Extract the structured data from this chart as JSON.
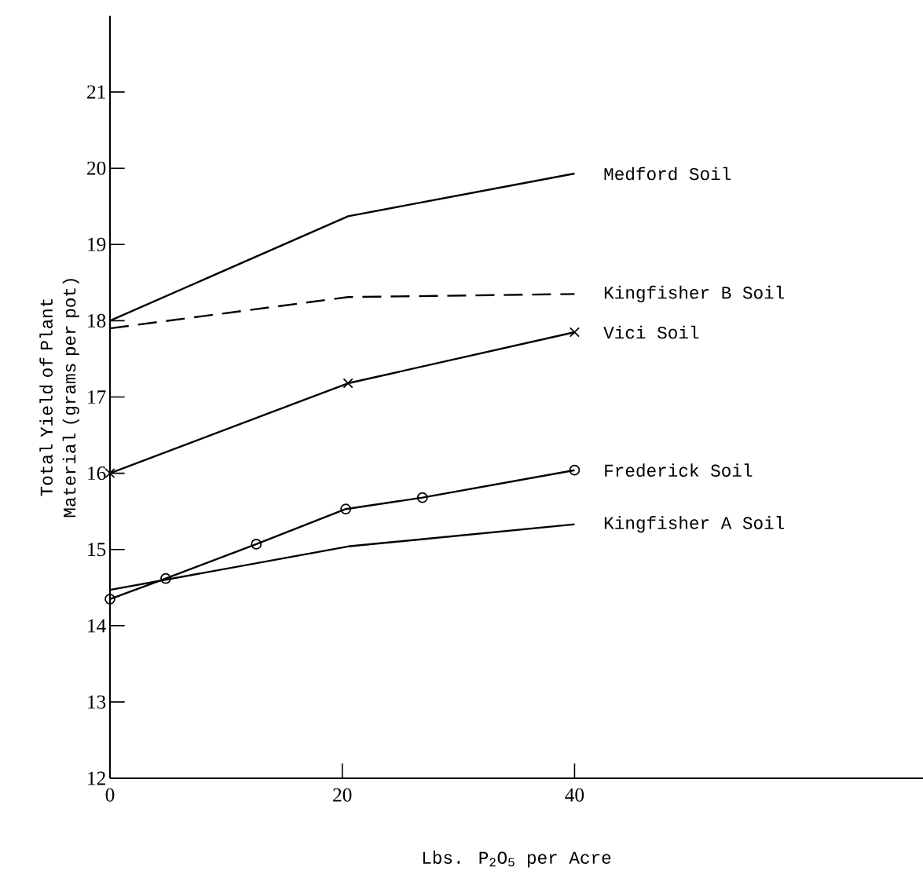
{
  "chart_data": {
    "type": "line",
    "xlabel": "Lbs. P$_{2}$O$_{5}$ per Acre",
    "ylabel": "Total Yield of Plant Material (grams per pot)",
    "xlim": [
      0,
      70
    ],
    "ylim": [
      12,
      22
    ],
    "xticks": [
      0,
      20,
      40
    ],
    "yticks": [
      12,
      13,
      14,
      15,
      16,
      17,
      18,
      19,
      20,
      21
    ],
    "grid": false,
    "legend": false,
    "series": [
      {
        "name": "Medford Soil",
        "color": "#000000",
        "x": [
          0,
          20.5,
          40
        ],
        "values": [
          18.0,
          19.37,
          19.93
        ],
        "line_style": "solid",
        "marker": "none"
      },
      {
        "name": "Kingfisher B Soil",
        "color": "#000000",
        "x": [
          0,
          20.5,
          40
        ],
        "values": [
          17.9,
          18.31,
          18.35
        ],
        "line_style": "dashed",
        "marker": "none"
      },
      {
        "name": "Vici Soil",
        "color": "#000000",
        "x": [
          0,
          20.5,
          40
        ],
        "values": [
          16.0,
          17.18,
          17.85
        ],
        "line_style": "solid",
        "marker": "cross"
      },
      {
        "name": "Frederick Soil",
        "color": "#000000",
        "x": [
          0,
          4.8,
          12.6,
          20.3,
          26.9,
          40
        ],
        "values": [
          14.35,
          14.62,
          15.07,
          15.53,
          15.68,
          16.04
        ],
        "line_style": "solid",
        "marker": "circle"
      },
      {
        "name": "Kingfisher A Soil",
        "color": "#000000",
        "x": [
          0,
          20.5,
          40
        ],
        "values": [
          14.47,
          15.04,
          15.33
        ],
        "line_style": "solid",
        "marker": "none"
      }
    ]
  }
}
